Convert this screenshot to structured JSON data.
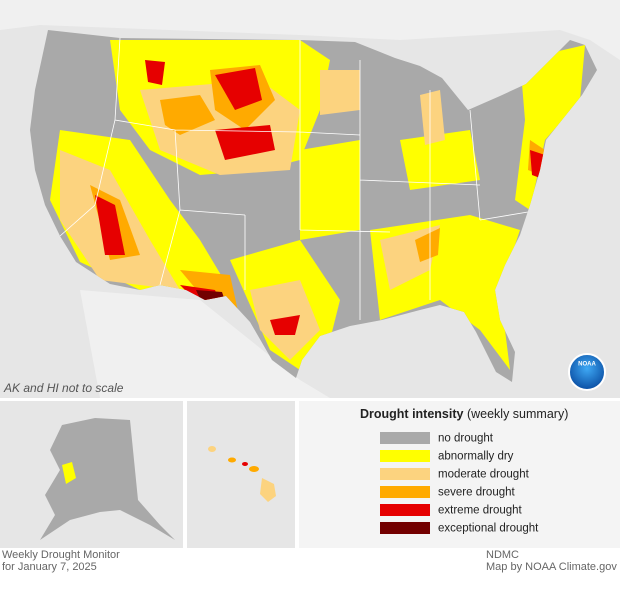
{
  "map": {
    "note": "AK and HI not to scale",
    "logo": "NOAA",
    "legend": {
      "title": "Drought intensity",
      "subtitle": "(weekly summary)",
      "items": [
        {
          "label": "no drought",
          "color": "#a9a9a9"
        },
        {
          "label": "abnormally dry",
          "color": "#ffff00"
        },
        {
          "label": "moderate drought",
          "color": "#fcd37f"
        },
        {
          "label": "severe drought",
          "color": "#ffaa00"
        },
        {
          "label": "extreme drought",
          "color": "#e60000"
        },
        {
          "label": "exceptional drought",
          "color": "#730000"
        }
      ]
    }
  },
  "footer": {
    "left": [
      "Weekly Drought Monitor",
      "for January 7, 2025"
    ],
    "right": [
      "NDMC",
      "Map by NOAA Climate.gov"
    ]
  }
}
